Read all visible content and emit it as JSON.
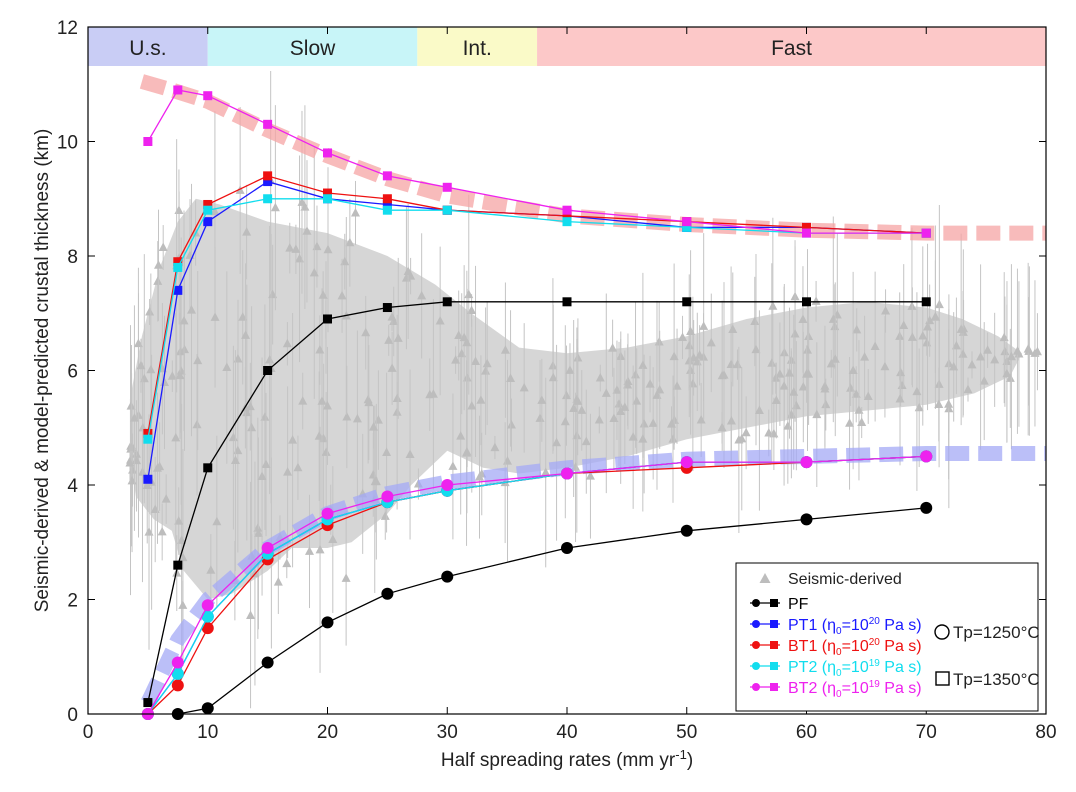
{
  "chart_data": {
    "type": "line",
    "xlabel": {
      "pre": "Half spreading rates (mm yr",
      "sup": "-1",
      "post": ")"
    },
    "ylabel": "Seismic-derived & model-predicted crustal thickness (km)",
    "xlim": [
      0,
      80
    ],
    "ylim": [
      0,
      12
    ],
    "xticks": [
      0,
      10,
      20,
      30,
      40,
      50,
      60,
      70,
      80
    ],
    "yticks": [
      0,
      2,
      4,
      6,
      8,
      10,
      12
    ],
    "grid": false,
    "legend_position": "bottom-right",
    "zones": [
      {
        "label": "U.s.",
        "x0": 0,
        "x1": 10,
        "color": "#c9cdf5"
      },
      {
        "label": "Slow",
        "x0": 10,
        "x1": 27.5,
        "color": "#c8f5f8"
      },
      {
        "label": "Int.",
        "x0": 27.5,
        "x1": 37.5,
        "color": "#fafac8"
      },
      {
        "label": "Fast",
        "x0": 37.5,
        "x1": 80,
        "color": "#fcc8c8"
      }
    ],
    "seismic_envelope": {
      "color": "#d6d6d6",
      "upper": [
        [
          3.5,
          5.5
        ],
        [
          4.5,
          6.6
        ],
        [
          6,
          7.8
        ],
        [
          7.5,
          8.6
        ],
        [
          9,
          9.0
        ],
        [
          11,
          8.9
        ],
        [
          15,
          8.6
        ],
        [
          20,
          8.4
        ],
        [
          25,
          8.0
        ],
        [
          29,
          7.5
        ],
        [
          32,
          7.0
        ],
        [
          36,
          6.4
        ],
        [
          40,
          6.3
        ],
        [
          45,
          6.4
        ],
        [
          50,
          6.6
        ],
        [
          55,
          6.9
        ],
        [
          60,
          7.1
        ],
        [
          65,
          7.2
        ],
        [
          70,
          7.1
        ],
        [
          73,
          6.9
        ],
        [
          76,
          6.6
        ],
        [
          78,
          6.3
        ]
      ],
      "lower": [
        [
          78,
          6.3
        ],
        [
          77,
          5.9
        ],
        [
          74,
          5.6
        ],
        [
          70,
          5.4
        ],
        [
          65,
          5.3
        ],
        [
          60,
          5.2
        ],
        [
          55,
          5.0
        ],
        [
          50,
          4.8
        ],
        [
          45,
          4.5
        ],
        [
          40,
          4.3
        ],
        [
          36,
          4.2
        ],
        [
          33,
          4.3
        ],
        [
          30,
          4.6
        ],
        [
          27,
          4.0
        ],
        [
          25,
          3.5
        ],
        [
          22,
          3.0
        ],
        [
          20,
          2.9
        ],
        [
          17,
          2.9
        ],
        [
          15,
          2.5
        ],
        [
          12,
          2.1
        ],
        [
          10,
          2.0
        ],
        [
          8,
          2.5
        ],
        [
          7,
          3.2
        ],
        [
          5.5,
          3.4
        ],
        [
          4,
          3.8
        ],
        [
          3.5,
          4.5
        ]
      ]
    },
    "trend_bands": [
      {
        "color": "#f5a4a4",
        "x": [
          4.5,
          7,
          10,
          15,
          20,
          25,
          30,
          40,
          50,
          60,
          70,
          80
        ],
        "y": [
          11.05,
          10.9,
          10.7,
          10.2,
          9.75,
          9.35,
          9.05,
          8.7,
          8.55,
          8.45,
          8.4,
          8.4
        ]
      },
      {
        "color": "#a4aaf5",
        "x": [
          5,
          7.5,
          10,
          15,
          20,
          25,
          30,
          40,
          50,
          60,
          70,
          80
        ],
        "y": [
          0.2,
          1.3,
          2.0,
          2.9,
          3.5,
          3.85,
          4.05,
          4.3,
          4.45,
          4.5,
          4.55,
          4.55
        ]
      }
    ],
    "series": [
      {
        "name": "PF",
        "color": "#000000",
        "marker": "square",
        "x": [
          5,
          7.5,
          10,
          15,
          20,
          25,
          30,
          40,
          50,
          60,
          70
        ],
        "y": [
          0.2,
          2.6,
          4.3,
          6.0,
          6.9,
          7.1,
          7.2,
          7.2,
          7.2,
          7.2,
          7.2
        ]
      },
      {
        "name": "PF",
        "color": "#000000",
        "marker": "circle",
        "x": [
          7.5,
          10,
          15,
          20,
          25,
          30,
          40,
          50,
          60,
          70
        ],
        "y": [
          0.0,
          0.1,
          0.9,
          1.6,
          2.1,
          2.4,
          2.9,
          3.2,
          3.4,
          3.6
        ]
      },
      {
        "name": "PT1",
        "color": "#1a1aff",
        "marker": "square",
        "x": [
          5,
          7.5,
          10,
          15,
          20,
          25,
          30,
          40,
          50,
          60,
          70
        ],
        "y": [
          4.1,
          7.4,
          8.6,
          9.3,
          9.0,
          8.9,
          8.8,
          8.7,
          8.5,
          8.5,
          8.4
        ]
      },
      {
        "name": "BT1",
        "color": "#ee1111",
        "marker": "square",
        "x": [
          5,
          7.5,
          10,
          15,
          20,
          25,
          30,
          40,
          50,
          60,
          70
        ],
        "y": [
          4.9,
          7.9,
          8.9,
          9.4,
          9.1,
          9.0,
          8.8,
          8.7,
          8.6,
          8.5,
          8.4
        ]
      },
      {
        "name": "PT2",
        "color": "#11ddee",
        "marker": "square",
        "x": [
          5,
          7.5,
          10,
          15,
          20,
          25,
          30,
          40,
          50,
          60,
          70
        ],
        "y": [
          4.8,
          7.8,
          8.8,
          9.0,
          9.0,
          8.8,
          8.8,
          8.6,
          8.5,
          8.4,
          8.4
        ]
      },
      {
        "name": "BT2",
        "color": "#ee22ee",
        "marker": "square",
        "x": [
          5,
          7.5,
          10,
          15,
          20,
          25,
          30,
          40,
          50,
          60,
          70
        ],
        "y": [
          10.0,
          10.9,
          10.8,
          10.3,
          9.8,
          9.4,
          9.2,
          8.8,
          8.6,
          8.4,
          8.4
        ]
      },
      {
        "name": "PT1",
        "color": "#1a1aff",
        "marker": "circle",
        "x": [
          5,
          7.5,
          10,
          15,
          20,
          25,
          30,
          40,
          50,
          60,
          70
        ],
        "y": [
          0.0,
          0.7,
          1.7,
          2.8,
          3.4,
          3.7,
          3.9,
          4.2,
          4.4,
          4.4,
          4.5
        ]
      },
      {
        "name": "BT1",
        "color": "#ee1111",
        "marker": "circle",
        "x": [
          5,
          7.5,
          10,
          15,
          20,
          25,
          30,
          40,
          50,
          60,
          70
        ],
        "y": [
          0.0,
          0.5,
          1.5,
          2.7,
          3.3,
          3.7,
          3.9,
          4.2,
          4.3,
          4.4,
          4.5
        ]
      },
      {
        "name": "PT2",
        "color": "#11ddee",
        "marker": "circle",
        "x": [
          5,
          7.5,
          10,
          15,
          20,
          25,
          30,
          40,
          50,
          60,
          70
        ],
        "y": [
          0.0,
          0.7,
          1.7,
          2.8,
          3.4,
          3.7,
          3.9,
          4.2,
          4.4,
          4.4,
          4.5
        ]
      },
      {
        "name": "BT2",
        "color": "#ee22ee",
        "marker": "circle",
        "x": [
          5,
          7.5,
          10,
          15,
          20,
          25,
          30,
          40,
          50,
          60,
          70
        ],
        "y": [
          0.0,
          0.9,
          1.9,
          2.9,
          3.5,
          3.8,
          4.0,
          4.2,
          4.4,
          4.4,
          4.5
        ]
      }
    ],
    "legend": {
      "seismic": "Seismic-derived",
      "entries": [
        {
          "key": "PF",
          "color": "#000000",
          "main": "PF",
          "sub": "",
          "exp": "",
          "unit": ""
        },
        {
          "key": "PT1",
          "color": "#1a1aff",
          "main": "PT1 (η",
          "sub": "0",
          "exp": "20",
          "unit": "=10"
        },
        {
          "key": "BT1",
          "color": "#ee1111",
          "main": "BT1 (η",
          "sub": "0",
          "exp": "20",
          "unit": "=10"
        },
        {
          "key": "PT2",
          "color": "#11ddee",
          "main": "PT2 (η",
          "sub": "0",
          "exp": "19",
          "unit": "=10"
        },
        {
          "key": "BT2",
          "color": "#ee22ee",
          "main": "BT2 (η",
          "sub": "0",
          "exp": "19",
          "unit": "=10"
        }
      ],
      "unit_suffix": " Pa s)",
      "tp_circle": "Tp=1250°C",
      "tp_square": "Tp=1350°C"
    }
  }
}
